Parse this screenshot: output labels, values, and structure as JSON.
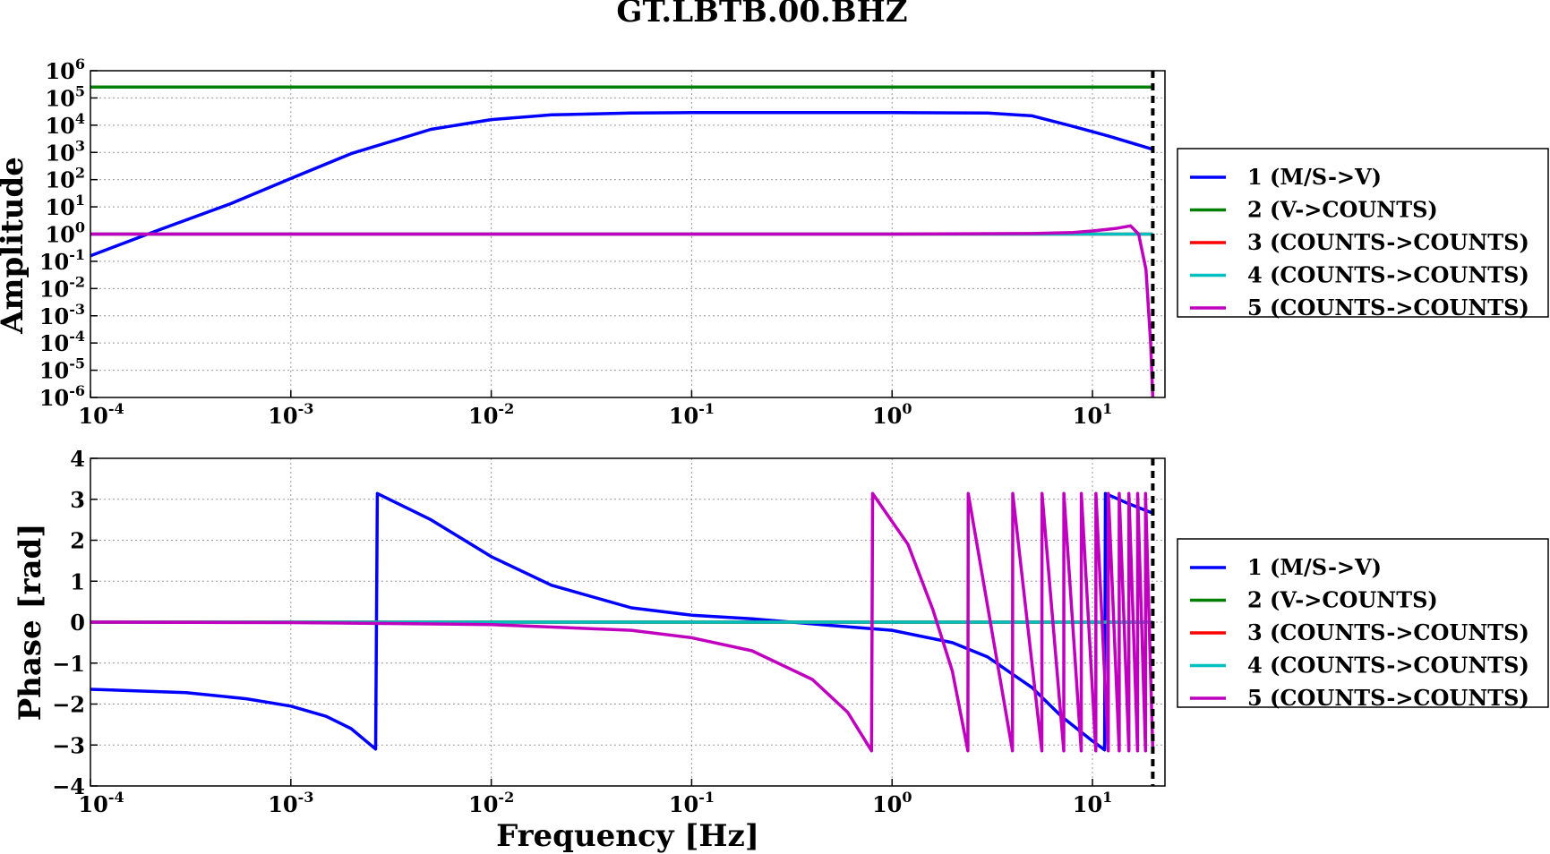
{
  "chart_data": {
    "title": "GT.LBTB.00.BHZ",
    "xlabel": "Frequency [Hz]",
    "nyquist_frequency_hz": 20,
    "amplitude_panel": {
      "type": "line",
      "ylabel": "Amplitude",
      "x_scale": "log",
      "y_scale": "log",
      "xlim": [
        0.0001,
        23
      ],
      "ylim": [
        1e-06,
        1000000.0
      ],
      "x_ticks": [
        {
          "base": "10",
          "exp": "-4",
          "value": 0.0001
        },
        {
          "base": "10",
          "exp": "-3",
          "value": 0.001
        },
        {
          "base": "10",
          "exp": "-2",
          "value": 0.01
        },
        {
          "base": "10",
          "exp": "-1",
          "value": 0.1
        },
        {
          "base": "10",
          "exp": "0",
          "value": 1
        },
        {
          "base": "10",
          "exp": "1",
          "value": 10
        }
      ],
      "y_ticks": [
        {
          "base": "10",
          "exp": "6",
          "value": 1000000.0
        },
        {
          "base": "10",
          "exp": "5",
          "value": 100000.0
        },
        {
          "base": "10",
          "exp": "4",
          "value": 10000.0
        },
        {
          "base": "10",
          "exp": "3",
          "value": 1000.0
        },
        {
          "base": "10",
          "exp": "2",
          "value": 100.0
        },
        {
          "base": "10",
          "exp": "1",
          "value": 10.0
        },
        {
          "base": "10",
          "exp": "0",
          "value": 1
        },
        {
          "base": "10",
          "exp": "-1",
          "value": 0.1
        },
        {
          "base": "10",
          "exp": "-2",
          "value": 0.01
        },
        {
          "base": "10",
          "exp": "-3",
          "value": 0.001
        },
        {
          "base": "10",
          "exp": "-4",
          "value": 0.0001
        },
        {
          "base": "10",
          "exp": "-5",
          "value": 1e-05
        },
        {
          "base": "10",
          "exp": "-6",
          "value": 1e-06
        }
      ],
      "grid": true,
      "legend_placement": "right",
      "series": [
        {
          "name": "1 (M/S->V)",
          "color": "#0000ff",
          "x": [
            0.0001,
            0.0002,
            0.0005,
            0.001,
            0.002,
            0.005,
            0.01,
            0.02,
            0.05,
            0.1,
            0.3,
            1,
            3,
            5,
            8,
            12,
            20
          ],
          "y": [
            0.16,
            1.1,
            13,
            110,
            900,
            7000,
            16000,
            24000,
            28000,
            29000,
            29000,
            29000,
            28000,
            22000,
            9000,
            4000,
            1300
          ]
        },
        {
          "name": "2 (V->COUNTS)",
          "color": "#008000",
          "x": [
            0.0001,
            20
          ],
          "y": [
            250000,
            250000
          ]
        },
        {
          "name": "3 (COUNTS->COUNTS)",
          "color": "#ff0000",
          "x": [
            0.0001,
            20
          ],
          "y": [
            1,
            1
          ]
        },
        {
          "name": "4 (COUNTS->COUNTS)",
          "color": "#00bfbf",
          "x": [
            0.0001,
            20
          ],
          "y": [
            1,
            1
          ]
        },
        {
          "name": "5 (COUNTS->COUNTS)",
          "color": "#bf00bf",
          "x": [
            0.0001,
            1,
            5,
            8,
            10,
            13,
            15.5,
            17,
            18.5,
            19.5,
            20
          ],
          "y": [
            1,
            1,
            1.05,
            1.15,
            1.3,
            1.6,
            2.0,
            1.0,
            0.05,
            0.0001,
            1e-06
          ]
        }
      ]
    },
    "phase_panel": {
      "type": "line",
      "ylabel": "Phase [rad]",
      "x_scale": "log",
      "xlim": [
        0.0001,
        23
      ],
      "ylim": [
        -4,
        4
      ],
      "x_ticks": [
        {
          "base": "10",
          "exp": "-4",
          "value": 0.0001
        },
        {
          "base": "10",
          "exp": "-3",
          "value": 0.001
        },
        {
          "base": "10",
          "exp": "-2",
          "value": 0.01
        },
        {
          "base": "10",
          "exp": "-1",
          "value": 0.1
        },
        {
          "base": "10",
          "exp": "0",
          "value": 1
        },
        {
          "base": "10",
          "exp": "1",
          "value": 10
        }
      ],
      "y_ticks": [
        "4",
        "3",
        "2",
        "1",
        "0",
        "−1",
        "−2",
        "−3",
        "−4"
      ],
      "y_tick_values": [
        4,
        3,
        2,
        1,
        0,
        -1,
        -2,
        -3,
        -4
      ],
      "grid": true,
      "legend_placement": "right",
      "series": [
        {
          "name": "1 (M/S->V)",
          "color": "#0000ff",
          "x": [
            0.0001,
            0.0003,
            0.0006,
            0.001,
            0.0015,
            0.002,
            0.00265,
            0.0027,
            0.005,
            0.01,
            0.02,
            0.05,
            0.1,
            0.2,
            0.5,
            1,
            2,
            3,
            5,
            7,
            10,
            11.5,
            11.6,
            15,
            20
          ],
          "y": [
            -1.64,
            -1.72,
            -1.87,
            -2.05,
            -2.3,
            -2.6,
            -3.1,
            3.14,
            2.5,
            1.6,
            0.9,
            0.35,
            0.17,
            0.08,
            -0.08,
            -0.2,
            -0.5,
            -0.85,
            -1.6,
            -2.3,
            -2.9,
            -3.12,
            3.14,
            2.9,
            2.66
          ]
        },
        {
          "name": "2 (V->COUNTS)",
          "color": "#008000",
          "x": [
            0.0001,
            20
          ],
          "y": [
            0,
            0
          ]
        },
        {
          "name": "3 (COUNTS->COUNTS)",
          "color": "#ff0000",
          "x": [
            0.0001,
            20
          ],
          "y": [
            0,
            0
          ]
        },
        {
          "name": "4 (COUNTS->COUNTS)",
          "color": "#00bfbf",
          "x": [
            0.0001,
            20
          ],
          "y": [
            0,
            0
          ]
        },
        {
          "name": "5 (COUNTS->COUNTS)",
          "color": "#bf00bf",
          "x": [
            0.0001,
            0.001,
            0.01,
            0.05,
            0.1,
            0.2,
            0.4,
            0.6,
            0.79,
            0.8,
            1.2,
            1.6,
            2.0,
            2.39,
            2.4,
            3.99,
            4.0,
            5.59,
            5.6,
            7.19,
            7.2,
            8.79,
            8.8,
            10.39,
            10.4,
            11.99,
            12.0,
            13.59,
            13.6,
            15.19,
            15.2,
            16.79,
            16.8,
            18.39,
            18.4,
            19.99
          ],
          "y": [
            0,
            -0.01,
            -0.06,
            -0.2,
            -0.38,
            -0.7,
            -1.4,
            -2.2,
            -3.14,
            3.14,
            1.9,
            0.3,
            -1.2,
            -3.14,
            3.14,
            -3.14,
            3.14,
            -3.14,
            3.14,
            -3.14,
            3.14,
            -3.14,
            3.14,
            -3.14,
            3.14,
            -3.14,
            3.14,
            -3.14,
            3.14,
            -3.14,
            3.14,
            -3.14,
            3.14,
            -3.14,
            3.14,
            -3.14
          ]
        }
      ]
    },
    "legend_entries": [
      {
        "name": "1 (M/S->V)",
        "color": "#0000ff"
      },
      {
        "name": "2 (V->COUNTS)",
        "color": "#008000"
      },
      {
        "name": "3 (COUNTS->COUNTS)",
        "color": "#ff0000"
      },
      {
        "name": "4 (COUNTS->COUNTS)",
        "color": "#00bfbf"
      },
      {
        "name": "5 (COUNTS->COUNTS)",
        "color": "#bf00bf"
      }
    ]
  }
}
